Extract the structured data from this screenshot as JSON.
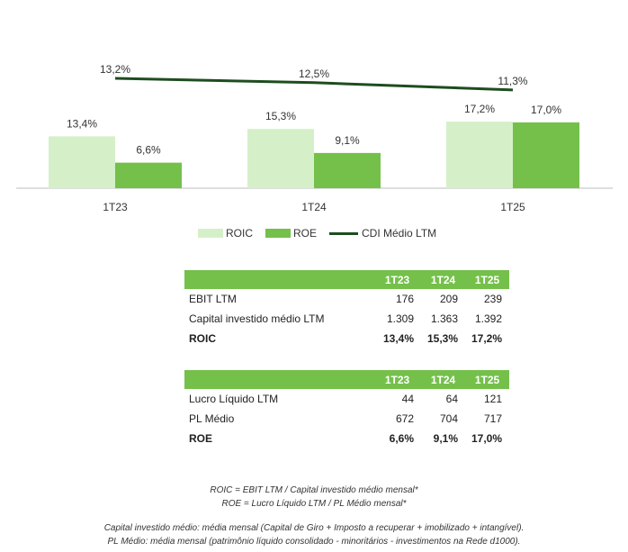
{
  "chart_data": {
    "type": "bar",
    "categories": [
      "1T23",
      "1T24",
      "1T25"
    ],
    "series": [
      {
        "name": "ROIC",
        "kind": "bar",
        "values": [
          13.4,
          15.3,
          17.2
        ],
        "labels": [
          "13,4%",
          "15,3%",
          "17,2%"
        ],
        "color": "#d5f0c8"
      },
      {
        "name": "ROE",
        "kind": "bar",
        "values": [
          6.6,
          9.1,
          17.0
        ],
        "labels": [
          "6,6%",
          "9,1%",
          "17,0%"
        ],
        "color": "#74c04a"
      },
      {
        "name": "CDI Médio LTM",
        "kind": "line",
        "values": [
          13.2,
          12.5,
          11.3
        ],
        "labels": [
          "13,2%",
          "12,5%",
          "11,3%"
        ],
        "color": "#1e4d1e"
      }
    ],
    "legend": "bottom",
    "grid": false
  },
  "table_roic": {
    "headers": [
      "",
      "1T23",
      "1T24",
      "1T25"
    ],
    "rows": [
      {
        "label": "EBIT LTM",
        "values": [
          "176",
          "209",
          "239"
        ],
        "bold": false
      },
      {
        "label": "Capital investido médio LTM",
        "values": [
          "1.309",
          "1.363",
          "1.392"
        ],
        "bold": false
      },
      {
        "label": "ROIC",
        "values": [
          "13,4%",
          "15,3%",
          "17,2%"
        ],
        "bold": true
      }
    ]
  },
  "table_roe": {
    "headers": [
      "",
      "1T23",
      "1T24",
      "1T25"
    ],
    "rows": [
      {
        "label": "Lucro Líquido LTM",
        "values": [
          "44",
          "64",
          "121"
        ],
        "bold": false
      },
      {
        "label": "PL Médio",
        "values": [
          "672",
          "704",
          "717"
        ],
        "bold": false
      },
      {
        "label": "ROE",
        "values": [
          "6,6%",
          "9,1%",
          "17,0%"
        ],
        "bold": true
      }
    ]
  },
  "notes": {
    "formula_roic": "ROIC = EBIT LTM / Capital investido médio mensal*",
    "formula_roe": "ROE = Lucro Líquido LTM / PL Médio mensal*",
    "def_capital": "Capital investido médio: média mensal (Capital de Giro + Imposto a recuperar + imobilizado + intangível).",
    "def_pl": "PL Médio: média mensal (patrimônio líquido consolidado - minoritários - investimentos na Rede d1000)."
  },
  "colors": {
    "table_header": "#74c04a"
  }
}
